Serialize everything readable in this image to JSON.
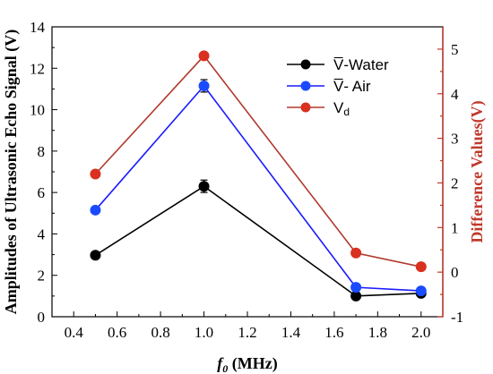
{
  "chart_data": {
    "type": "line",
    "x": [
      0.5,
      1.0,
      1.7,
      2.0
    ],
    "xlim": [
      0.3,
      2.1
    ],
    "xticks": [
      "0.4",
      "0.6",
      "0.8",
      "1.0",
      "1.2",
      "1.4",
      "1.6",
      "1.8",
      "2.0"
    ],
    "xlabel": {
      "italic": "f",
      "sub": "0",
      "rest": " (MHz)"
    },
    "ylabel_left": "Amplitudes of Ultrasonic Echo Signal (V)",
    "ylim_left": [
      0,
      14
    ],
    "yticks_left": [
      "0",
      "2",
      "4",
      "6",
      "8",
      "10",
      "12",
      "14"
    ],
    "ylabel_right": "Difference Values(V)",
    "ylim_right": [
      -1,
      5.5
    ],
    "yticks_right": [
      "-1",
      "0",
      "1",
      "2",
      "3",
      "4",
      "5"
    ],
    "right_axis_color": "#c0392b",
    "legend_position": "top-right",
    "series": [
      {
        "name": "V̅-Water",
        "axis": "left",
        "color": "#000000",
        "values": [
          2.97,
          6.3,
          1.0,
          1.13
        ],
        "errors": [
          0,
          0.3,
          0,
          0.12
        ]
      },
      {
        "name": "V̅- Air",
        "axis": "left",
        "color": "#1a1aff",
        "marker": "#1a4bff",
        "values": [
          5.15,
          11.15,
          1.42,
          1.25
        ],
        "errors": [
          0,
          0.3,
          0,
          0
        ]
      },
      {
        "name": "V",
        "sub": "d",
        "axis": "right",
        "color": "#b03a2e",
        "marker": "#d9301f",
        "values": [
          2.2,
          4.85,
          0.43,
          0.12
        ],
        "errors": [
          0,
          0,
          0,
          0
        ]
      }
    ]
  }
}
